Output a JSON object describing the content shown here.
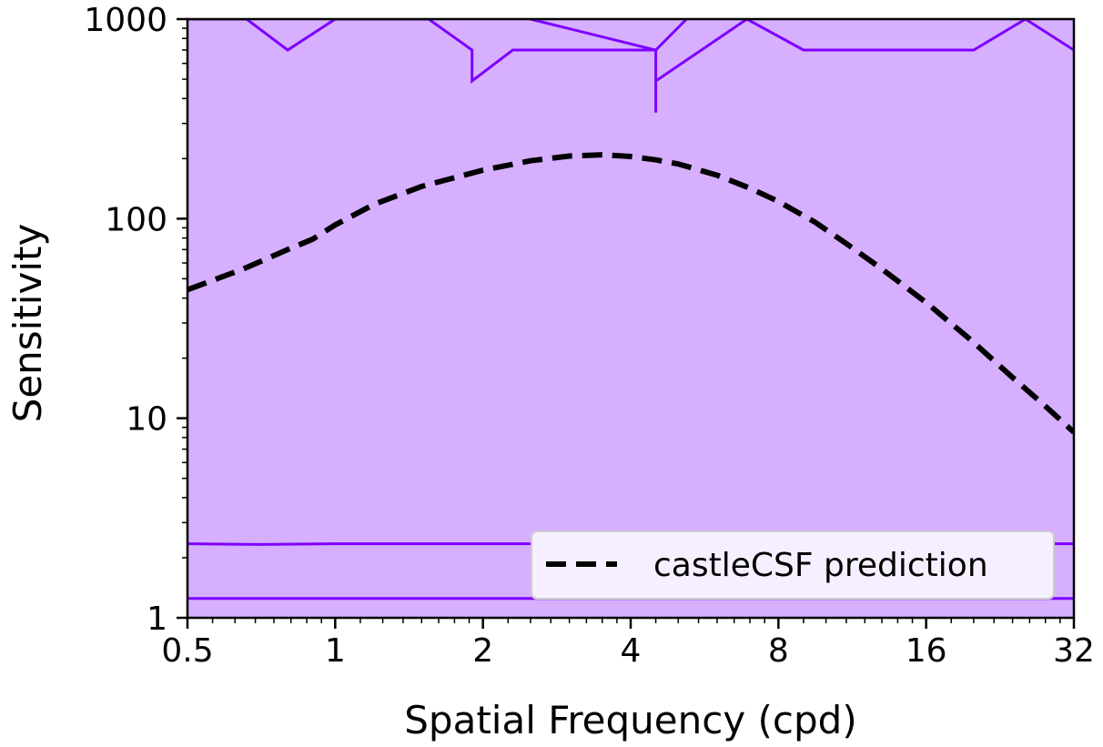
{
  "chart_data": {
    "type": "line",
    "title": "",
    "xlabel": "Spatial Frequency (cpd)",
    "ylabel": "Sensitivity",
    "xscale": "log2",
    "yscale": "log10",
    "xlim": [
      0.5,
      32
    ],
    "ylim": [
      1,
      1000
    ],
    "xticks": [
      0.5,
      1,
      2,
      4,
      8,
      16,
      32
    ],
    "xtick_labels": [
      "0.5",
      "1",
      "2",
      "4",
      "8",
      "16",
      "32"
    ],
    "yticks": [
      1,
      10,
      100,
      1000
    ],
    "ytick_labels": [
      "1",
      "10",
      "100",
      "1000"
    ],
    "grid": false,
    "legend": {
      "placement": "lower-right",
      "entries": [
        "castleCSF prediction"
      ]
    },
    "colors": {
      "fill": "#d6b0ff",
      "contour": "#7f00ff",
      "prediction": "#000000",
      "legend_bg": "#f6efff"
    },
    "series": [
      {
        "name": "castleCSF prediction",
        "style": "dashed",
        "x": [
          0.5,
          0.65,
          0.8,
          0.9,
          1.0,
          1.2,
          1.5,
          2.0,
          2.5,
          3.0,
          3.5,
          4.0,
          4.5,
          5.0,
          6.0,
          7.0,
          8.0,
          9.5,
          11.0,
          13.0,
          16.0,
          20.0,
          24.0,
          28.0,
          32.0
        ],
        "y": [
          44,
          56,
          70,
          79,
          93,
          118,
          145,
          175,
          195,
          206,
          209,
          205,
          197,
          188,
          165,
          142,
          122,
          96,
          75,
          56,
          38,
          24,
          16,
          11.5,
          8.5
        ]
      }
    ],
    "contours": [
      {
        "x": [
          0.5,
          0.66,
          0.8,
          1.0,
          1.55,
          1.9,
          1.9,
          2.3,
          4.5,
          5.2,
          5.2,
          5.2
        ],
        "y": [
          1000,
          1000,
          700,
          1000,
          1000,
          700,
          490,
          700,
          700,
          1000,
          1000,
          1000
        ]
      },
      {
        "x": [
          2.5,
          4.5,
          4.5,
          4.5,
          4.5,
          6.9,
          9.0,
          20.0,
          25.5,
          32.0
        ],
        "y": [
          1000,
          700,
          490,
          340,
          490,
          1000,
          700,
          700,
          1000,
          700
        ]
      },
      {
        "x": [
          0.5,
          0.7,
          1.0,
          32.0
        ],
        "y": [
          2.35,
          2.33,
          2.35,
          2.35
        ]
      },
      {
        "x": [
          0.5,
          32.0
        ],
        "y": [
          1.25,
          1.25
        ]
      }
    ]
  }
}
